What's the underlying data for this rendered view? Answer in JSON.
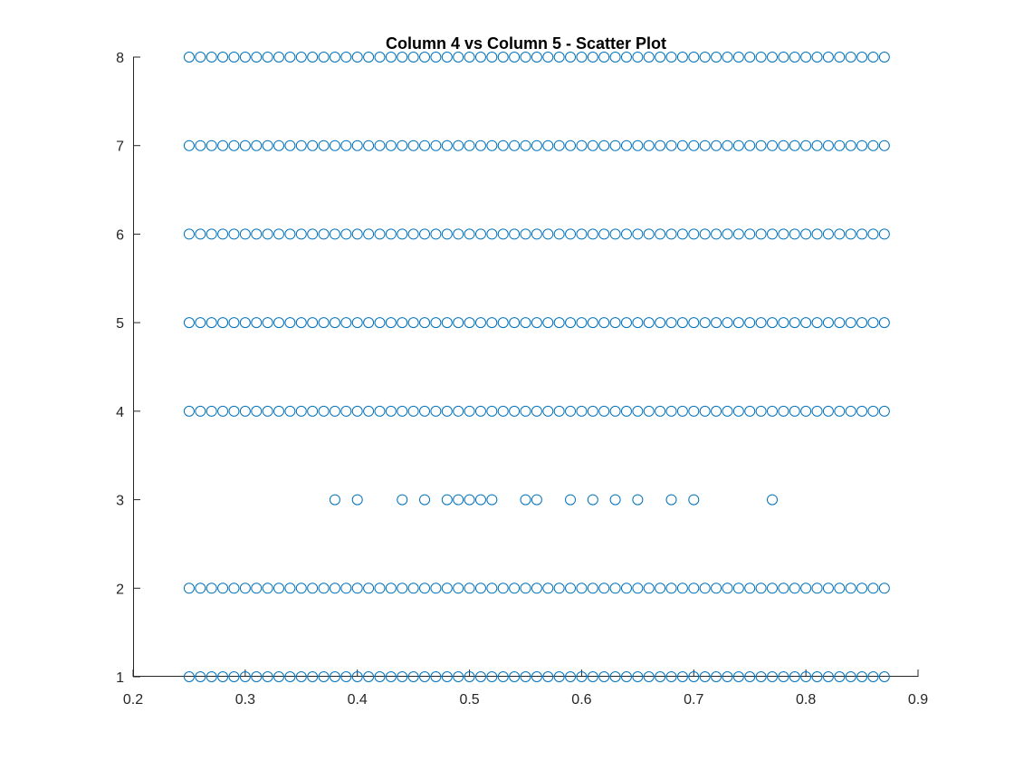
{
  "chart_data": {
    "type": "scatter",
    "title": "Column 4 vs Column 5 - Scatter Plot",
    "xlabel": "",
    "ylabel": "",
    "xlim": [
      0.2,
      0.9
    ],
    "ylim": [
      1,
      8
    ],
    "x_ticks": [
      0.2,
      0.3,
      0.4,
      0.5,
      0.6,
      0.7,
      0.8,
      0.9
    ],
    "x_tick_labels": [
      "0.2",
      "0.3",
      "0.4",
      "0.5",
      "0.6",
      "0.7",
      "0.8",
      "0.9"
    ],
    "y_ticks": [
      1,
      2,
      3,
      4,
      5,
      6,
      7,
      8
    ],
    "y_tick_labels": [
      "1",
      "2",
      "3",
      "4",
      "5",
      "6",
      "7",
      "8"
    ],
    "grid": false,
    "marker": "open-circle",
    "marker_color": "#0072BD",
    "series": [
      {
        "points": [
          {
            "y": 1,
            "x": [
              0.25,
              0.26,
              0.27,
              0.28,
              0.29,
              0.3,
              0.31,
              0.32,
              0.33,
              0.34,
              0.35,
              0.36,
              0.37,
              0.38,
              0.39,
              0.4,
              0.41,
              0.42,
              0.43,
              0.44,
              0.45,
              0.46,
              0.47,
              0.48,
              0.49,
              0.5,
              0.51,
              0.52,
              0.53,
              0.54,
              0.55,
              0.56,
              0.57,
              0.58,
              0.59,
              0.6,
              0.61,
              0.62,
              0.63,
              0.64,
              0.65,
              0.66,
              0.67,
              0.68,
              0.69,
              0.7,
              0.71,
              0.72,
              0.73,
              0.74,
              0.75,
              0.76,
              0.77,
              0.78,
              0.79,
              0.8,
              0.81,
              0.82,
              0.83,
              0.84,
              0.85,
              0.86,
              0.87
            ]
          },
          {
            "y": 2,
            "x": [
              0.25,
              0.26,
              0.27,
              0.28,
              0.29,
              0.3,
              0.31,
              0.32,
              0.33,
              0.34,
              0.35,
              0.36,
              0.37,
              0.38,
              0.39,
              0.4,
              0.41,
              0.42,
              0.43,
              0.44,
              0.45,
              0.46,
              0.47,
              0.48,
              0.49,
              0.5,
              0.51,
              0.52,
              0.53,
              0.54,
              0.55,
              0.56,
              0.57,
              0.58,
              0.59,
              0.6,
              0.61,
              0.62,
              0.63,
              0.64,
              0.65,
              0.66,
              0.67,
              0.68,
              0.69,
              0.7,
              0.71,
              0.72,
              0.73,
              0.74,
              0.75,
              0.76,
              0.77,
              0.78,
              0.79,
              0.8,
              0.81,
              0.82,
              0.83,
              0.84,
              0.85,
              0.86,
              0.87
            ]
          },
          {
            "y": 3,
            "x": [
              0.38,
              0.4,
              0.44,
              0.46,
              0.48,
              0.49,
              0.5,
              0.51,
              0.52,
              0.55,
              0.56,
              0.59,
              0.61,
              0.63,
              0.65,
              0.68,
              0.7,
              0.77
            ]
          },
          {
            "y": 4,
            "x": [
              0.25,
              0.26,
              0.27,
              0.28,
              0.29,
              0.3,
              0.31,
              0.32,
              0.33,
              0.34,
              0.35,
              0.36,
              0.37,
              0.38,
              0.39,
              0.4,
              0.41,
              0.42,
              0.43,
              0.44,
              0.45,
              0.46,
              0.47,
              0.48,
              0.49,
              0.5,
              0.51,
              0.52,
              0.53,
              0.54,
              0.55,
              0.56,
              0.57,
              0.58,
              0.59,
              0.6,
              0.61,
              0.62,
              0.63,
              0.64,
              0.65,
              0.66,
              0.67,
              0.68,
              0.69,
              0.7,
              0.71,
              0.72,
              0.73,
              0.74,
              0.75,
              0.76,
              0.77,
              0.78,
              0.79,
              0.8,
              0.81,
              0.82,
              0.83,
              0.84,
              0.85,
              0.86,
              0.87
            ]
          },
          {
            "y": 5,
            "x": [
              0.25,
              0.26,
              0.27,
              0.28,
              0.29,
              0.3,
              0.31,
              0.32,
              0.33,
              0.34,
              0.35,
              0.36,
              0.37,
              0.38,
              0.39,
              0.4,
              0.41,
              0.42,
              0.43,
              0.44,
              0.45,
              0.46,
              0.47,
              0.48,
              0.49,
              0.5,
              0.51,
              0.52,
              0.53,
              0.54,
              0.55,
              0.56,
              0.57,
              0.58,
              0.59,
              0.6,
              0.61,
              0.62,
              0.63,
              0.64,
              0.65,
              0.66,
              0.67,
              0.68,
              0.69,
              0.7,
              0.71,
              0.72,
              0.73,
              0.74,
              0.75,
              0.76,
              0.77,
              0.78,
              0.79,
              0.8,
              0.81,
              0.82,
              0.83,
              0.84,
              0.85,
              0.86,
              0.87
            ]
          },
          {
            "y": 6,
            "x": [
              0.25,
              0.26,
              0.27,
              0.28,
              0.29,
              0.3,
              0.31,
              0.32,
              0.33,
              0.34,
              0.35,
              0.36,
              0.37,
              0.38,
              0.39,
              0.4,
              0.41,
              0.42,
              0.43,
              0.44,
              0.45,
              0.46,
              0.47,
              0.48,
              0.49,
              0.5,
              0.51,
              0.52,
              0.53,
              0.54,
              0.55,
              0.56,
              0.57,
              0.58,
              0.59,
              0.6,
              0.61,
              0.62,
              0.63,
              0.64,
              0.65,
              0.66,
              0.67,
              0.68,
              0.69,
              0.7,
              0.71,
              0.72,
              0.73,
              0.74,
              0.75,
              0.76,
              0.77,
              0.78,
              0.79,
              0.8,
              0.81,
              0.82,
              0.83,
              0.84,
              0.85,
              0.86,
              0.87
            ]
          },
          {
            "y": 7,
            "x": [
              0.25,
              0.26,
              0.27,
              0.28,
              0.29,
              0.3,
              0.31,
              0.32,
              0.33,
              0.34,
              0.35,
              0.36,
              0.37,
              0.38,
              0.39,
              0.4,
              0.41,
              0.42,
              0.43,
              0.44,
              0.45,
              0.46,
              0.47,
              0.48,
              0.49,
              0.5,
              0.51,
              0.52,
              0.53,
              0.54,
              0.55,
              0.56,
              0.57,
              0.58,
              0.59,
              0.6,
              0.61,
              0.62,
              0.63,
              0.64,
              0.65,
              0.66,
              0.67,
              0.68,
              0.69,
              0.7,
              0.71,
              0.72,
              0.73,
              0.74,
              0.75,
              0.76,
              0.77,
              0.78,
              0.79,
              0.8,
              0.81,
              0.82,
              0.83,
              0.84,
              0.85,
              0.86,
              0.87
            ]
          },
          {
            "y": 8,
            "x": [
              0.25,
              0.26,
              0.27,
              0.28,
              0.29,
              0.3,
              0.31,
              0.32,
              0.33,
              0.34,
              0.35,
              0.36,
              0.37,
              0.38,
              0.39,
              0.4,
              0.41,
              0.42,
              0.43,
              0.44,
              0.45,
              0.46,
              0.47,
              0.48,
              0.49,
              0.5,
              0.51,
              0.52,
              0.53,
              0.54,
              0.55,
              0.56,
              0.57,
              0.58,
              0.59,
              0.6,
              0.61,
              0.62,
              0.63,
              0.64,
              0.65,
              0.66,
              0.67,
              0.68,
              0.69,
              0.7,
              0.71,
              0.72,
              0.73,
              0.74,
              0.75,
              0.76,
              0.77,
              0.78,
              0.79,
              0.8,
              0.81,
              0.82,
              0.83,
              0.84,
              0.85,
              0.86,
              0.87
            ]
          }
        ]
      }
    ]
  }
}
